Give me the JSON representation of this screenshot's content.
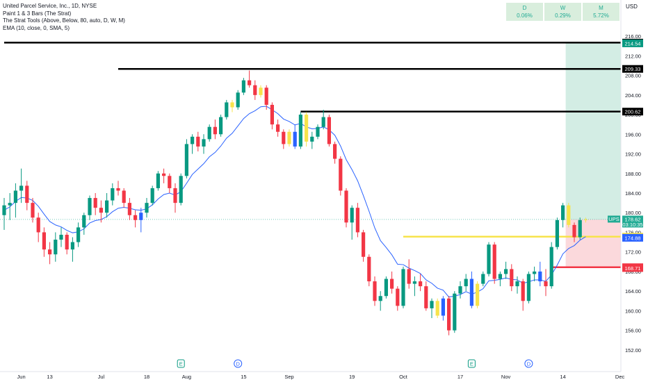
{
  "legend": {
    "symbol": "United Parcel Service, Inc., 1D, NYSE",
    "indicator1": "Paint 1 & 3 Bars (The Strat)",
    "indicator2": "The Strat Tools (Above, Below, 80, auto, D, W, M)",
    "indicator3": "EMA (10, close, 0, SMA, 5)"
  },
  "performance": [
    {
      "label": "D",
      "value": "0.06%"
    },
    {
      "label": "W",
      "value": "0.29%"
    },
    {
      "label": "M",
      "value": "5.72%"
    }
  ],
  "currency": "USD",
  "colors": {
    "up": "#089981",
    "down": "#f23645",
    "inside": "#f7e34b",
    "outside": "#2962ff",
    "ema": "#2962ff",
    "level": "#000000",
    "yellow_level": "#f7e34b",
    "red_level": "#f23645",
    "profit_zone": "#d3ede4",
    "loss_zone": "#fbd9dc"
  },
  "chart_data": {
    "type": "candlestick",
    "ylim": [
      150,
      218
    ],
    "y_ticks": [
      152,
      156,
      160,
      164,
      168,
      172,
      176,
      180,
      184,
      188,
      192,
      196,
      200,
      204,
      208,
      212,
      216
    ],
    "x_labels": [
      "Jun",
      "13",
      "Jul",
      "18",
      "Aug",
      "15",
      "Sep",
      "19",
      "Oct",
      "17",
      "Nov",
      "14",
      "Dec"
    ],
    "x_label_index": [
      3,
      8,
      17,
      25,
      32,
      42,
      50,
      61,
      70,
      80,
      88,
      98,
      108
    ],
    "levels": [
      {
        "price": 214.69,
        "label": "214.69",
        "start": 0,
        "color": "#000000"
      },
      {
        "price": 209.33,
        "label": "209.33",
        "start": 20,
        "color": "#000000"
      },
      {
        "price": 200.62,
        "label": "200.62",
        "start": 52,
        "color": "#000000"
      },
      {
        "price": 175.11,
        "label": "175.11",
        "start": 70,
        "color": "#f7e34b"
      },
      {
        "price": 168.88,
        "label": "168.88",
        "start": 96,
        "color": "#f23645"
      }
    ],
    "price_tags": [
      {
        "label": "214.54",
        "price": 214.54,
        "bg": "#089981",
        "fg": "#ffffff"
      },
      {
        "label": "178.45",
        "price": 178.45,
        "bg": "#2962ff",
        "fg": "#ffffff"
      },
      {
        "label": "174.88",
        "price": 174.88,
        "bg": "#2962ff",
        "fg": "#ffffff"
      },
      {
        "label": "168.71",
        "price": 168.71,
        "bg": "#f23645",
        "fg": "#ffffff"
      }
    ],
    "last_price": {
      "symbol": "UPS",
      "price": 178.62,
      "label": "178.62",
      "countdown": "03:10:35"
    },
    "position": {
      "entry": 178.62,
      "target": 214.69,
      "stop": 168.88,
      "start": 98
    },
    "event_markers": [
      {
        "index": 31,
        "letter": "E"
      },
      {
        "index": 41,
        "letter": "D"
      },
      {
        "index": 82,
        "letter": "E"
      },
      {
        "index": 92,
        "letter": "D"
      }
    ],
    "candles": [
      {
        "o": 179.5,
        "h": 183,
        "l": 176.5,
        "c": 181.5
      },
      {
        "o": 181.5,
        "h": 184,
        "l": 178.5,
        "c": 182
      },
      {
        "o": 182,
        "h": 186,
        "l": 179,
        "c": 184.5
      },
      {
        "o": 184.5,
        "h": 189,
        "l": 182,
        "c": 185.5
      },
      {
        "o": 185.5,
        "h": 186.5,
        "l": 180.5,
        "c": 182
      },
      {
        "o": 182,
        "h": 183,
        "l": 178,
        "c": 179
      },
      {
        "o": 179,
        "h": 180,
        "l": 174,
        "c": 176
      },
      {
        "o": 176,
        "h": 177,
        "l": 171,
        "c": 172.5
      },
      {
        "o": 172.5,
        "h": 174,
        "l": 169.5,
        "c": 171.5
      },
      {
        "o": 171.5,
        "h": 176,
        "l": 170,
        "c": 174.5
      },
      {
        "o": 174.5,
        "h": 177,
        "l": 173,
        "c": 175.5
      },
      {
        "o": 175.5,
        "h": 176,
        "l": 171.5,
        "c": 172.5
      },
      {
        "o": 172.5,
        "h": 175,
        "l": 170,
        "c": 174
      },
      {
        "o": 174,
        "h": 178,
        "l": 173,
        "c": 177
      },
      {
        "o": 177,
        "h": 180,
        "l": 175.5,
        "c": 179.5
      },
      {
        "o": 179.5,
        "h": 183.5,
        "l": 178.5,
        "c": 183
      },
      {
        "o": 183,
        "h": 184,
        "l": 179.5,
        "c": 181
      },
      {
        "o": 181,
        "h": 182.5,
        "l": 178,
        "c": 180
      },
      {
        "o": 180,
        "h": 184,
        "l": 179,
        "c": 182.5
      },
      {
        "o": 182.5,
        "h": 186,
        "l": 181.5,
        "c": 185
      },
      {
        "o": 185,
        "h": 186.5,
        "l": 183.5,
        "c": 184.5
      },
      {
        "o": 184.5,
        "h": 185,
        "l": 181,
        "c": 182
      },
      {
        "o": 182,
        "h": 183,
        "l": 178.5,
        "c": 179.5
      },
      {
        "o": 179.5,
        "h": 180.5,
        "l": 177,
        "c": 178.5
      },
      {
        "o": 178.5,
        "h": 181,
        "l": 176,
        "c": 180
      },
      {
        "o": 180,
        "h": 183,
        "l": 179,
        "c": 182
      },
      {
        "o": 182,
        "h": 185.5,
        "l": 181.5,
        "c": 185
      },
      {
        "o": 185,
        "h": 188.5,
        "l": 184.5,
        "c": 188
      },
      {
        "o": 188,
        "h": 189,
        "l": 186,
        "c": 187.5
      },
      {
        "o": 187.5,
        "h": 188,
        "l": 184,
        "c": 185
      },
      {
        "o": 185,
        "h": 186,
        "l": 180,
        "c": 182
      },
      {
        "o": 182,
        "h": 188,
        "l": 181.5,
        "c": 187.5
      },
      {
        "o": 187.5,
        "h": 195,
        "l": 187,
        "c": 194
      },
      {
        "o": 194,
        "h": 196,
        "l": 192,
        "c": 195.5
      },
      {
        "o": 195.5,
        "h": 196.5,
        "l": 192.5,
        "c": 193.5
      },
      {
        "o": 193.5,
        "h": 196,
        "l": 192,
        "c": 195
      },
      {
        "o": 195,
        "h": 198,
        "l": 194.5,
        "c": 197.5
      },
      {
        "o": 197.5,
        "h": 199,
        "l": 195,
        "c": 196
      },
      {
        "o": 196,
        "h": 200,
        "l": 195.5,
        "c": 199.5
      },
      {
        "o": 199.5,
        "h": 203,
        "l": 199,
        "c": 202.5
      },
      {
        "o": 202.5,
        "h": 203,
        "l": 200.5,
        "c": 201.5
      },
      {
        "o": 201.5,
        "h": 205,
        "l": 201,
        "c": 204.5
      },
      {
        "o": 204.5,
        "h": 207.5,
        "l": 204,
        "c": 207
      },
      {
        "o": 207,
        "h": 209,
        "l": 205.5,
        "c": 206
      },
      {
        "o": 206,
        "h": 207,
        "l": 203,
        "c": 204
      },
      {
        "o": 204,
        "h": 206,
        "l": 203.5,
        "c": 205.5
      },
      {
        "o": 205.5,
        "h": 206,
        "l": 201,
        "c": 202
      },
      {
        "o": 202,
        "h": 202.5,
        "l": 197,
        "c": 198
      },
      {
        "o": 198,
        "h": 199,
        "l": 195.5,
        "c": 196.5
      },
      {
        "o": 196.5,
        "h": 197,
        "l": 193,
        "c": 194
      },
      {
        "o": 194,
        "h": 197,
        "l": 193.5,
        "c": 196.5
      },
      {
        "o": 196.5,
        "h": 198,
        "l": 193,
        "c": 193.5
      },
      {
        "o": 193.5,
        "h": 200.5,
        "l": 193,
        "c": 200
      },
      {
        "o": 200,
        "h": 200.5,
        "l": 193.5,
        "c": 194.5
      },
      {
        "o": 194.5,
        "h": 196.5,
        "l": 193,
        "c": 195.5
      },
      {
        "o": 195.5,
        "h": 198,
        "l": 195,
        "c": 197.5
      },
      {
        "o": 197.5,
        "h": 201,
        "l": 197,
        "c": 199.5
      },
      {
        "o": 199.5,
        "h": 200,
        "l": 193.5,
        "c": 194
      },
      {
        "o": 194,
        "h": 194.5,
        "l": 190,
        "c": 191
      },
      {
        "o": 191,
        "h": 191.5,
        "l": 183.5,
        "c": 184.5
      },
      {
        "o": 184.5,
        "h": 185,
        "l": 177,
        "c": 178
      },
      {
        "o": 178,
        "h": 181.5,
        "l": 174.5,
        "c": 181
      },
      {
        "o": 181,
        "h": 182,
        "l": 175,
        "c": 176
      },
      {
        "o": 176,
        "h": 176.5,
        "l": 170,
        "c": 171
      },
      {
        "o": 171,
        "h": 171.5,
        "l": 165,
        "c": 166
      },
      {
        "o": 166,
        "h": 167,
        "l": 161,
        "c": 162
      },
      {
        "o": 162,
        "h": 164,
        "l": 160,
        "c": 163
      },
      {
        "o": 163,
        "h": 167,
        "l": 162.5,
        "c": 166.5
      },
      {
        "o": 166.5,
        "h": 168,
        "l": 163.5,
        "c": 164.5
      },
      {
        "o": 164.5,
        "h": 165,
        "l": 160,
        "c": 161
      },
      {
        "o": 161,
        "h": 169,
        "l": 160.5,
        "c": 168.5
      },
      {
        "o": 168.5,
        "h": 170.5,
        "l": 164.5,
        "c": 165.5
      },
      {
        "o": 165.5,
        "h": 167,
        "l": 163,
        "c": 166
      },
      {
        "o": 166,
        "h": 167.5,
        "l": 164,
        "c": 165
      },
      {
        "o": 165,
        "h": 166,
        "l": 160,
        "c": 160.5
      },
      {
        "o": 160.5,
        "h": 162.5,
        "l": 158.5,
        "c": 162
      },
      {
        "o": 162,
        "h": 162.5,
        "l": 158.5,
        "c": 159
      },
      {
        "o": 159,
        "h": 163,
        "l": 158,
        "c": 162.5
      },
      {
        "o": 162.5,
        "h": 163,
        "l": 155,
        "c": 156
      },
      {
        "o": 156,
        "h": 164,
        "l": 155.5,
        "c": 163.5
      },
      {
        "o": 163.5,
        "h": 166,
        "l": 162.5,
        "c": 165
      },
      {
        "o": 165,
        "h": 167.5,
        "l": 164,
        "c": 166.5
      },
      {
        "o": 166.5,
        "h": 168,
        "l": 160.5,
        "c": 161
      },
      {
        "o": 161,
        "h": 166,
        "l": 160.5,
        "c": 165.5
      },
      {
        "o": 165.5,
        "h": 168,
        "l": 165,
        "c": 167.5
      },
      {
        "o": 167.5,
        "h": 174,
        "l": 167,
        "c": 173.5
      },
      {
        "o": 173.5,
        "h": 174,
        "l": 165.5,
        "c": 166.5
      },
      {
        "o": 166.5,
        "h": 168,
        "l": 165,
        "c": 167.5
      },
      {
        "o": 167.5,
        "h": 170,
        "l": 166.5,
        "c": 168.5
      },
      {
        "o": 168.5,
        "h": 169.5,
        "l": 164,
        "c": 165
      },
      {
        "o": 165,
        "h": 167,
        "l": 163.5,
        "c": 166
      },
      {
        "o": 166,
        "h": 166.5,
        "l": 160,
        "c": 162
      },
      {
        "o": 162,
        "h": 168,
        "l": 161.5,
        "c": 167.5
      },
      {
        "o": 167.5,
        "h": 169,
        "l": 166,
        "c": 168
      },
      {
        "o": 168,
        "h": 170,
        "l": 165,
        "c": 166
      },
      {
        "o": 166,
        "h": 168.5,
        "l": 163,
        "c": 165
      },
      {
        "o": 165,
        "h": 174,
        "l": 164.5,
        "c": 173
      },
      {
        "o": 173,
        "h": 179,
        "l": 172.5,
        "c": 178.5
      },
      {
        "o": 178.5,
        "h": 182,
        "l": 177,
        "c": 181.5
      },
      {
        "o": 181.5,
        "h": 182,
        "l": 177,
        "c": 177.5
      },
      {
        "o": 177.5,
        "h": 178,
        "l": 174,
        "c": 175
      },
      {
        "o": 175,
        "h": 179,
        "l": 174.5,
        "c": 178.5
      },
      {
        "o": 178.5,
        "h": 179,
        "l": 178,
        "c": 178.62
      }
    ],
    "ema": [
      180.5,
      181.2,
      182.3,
      183.1,
      183,
      182.5,
      181.3,
      179.7,
      178.2,
      177.5,
      177.1,
      176.4,
      175.9,
      176.1,
      176.7,
      177.9,
      178.4,
      178.6,
      179.2,
      180.2,
      180.9,
      181.1,
      180.9,
      180.6,
      180.5,
      180.8,
      181.6,
      182.8,
      183.7,
      184,
      183.6,
      184.3,
      186,
      187.8,
      188.9,
      190,
      191.4,
      192.3,
      193.6,
      195.2,
      196.2,
      197.7,
      199.2,
      200.2,
      200.8,
      201.6,
      201.7,
      201,
      200.2,
      199.1,
      198.6,
      197.9,
      198.2,
      197.5,
      197.1,
      197.2,
      197.5,
      196.9,
      195.8,
      193.6,
      190.8,
      188.8,
      186.5,
      183.5,
      180.3,
      176.9,
      174.3,
      172.9,
      171.4,
      169.5,
      169.4,
      168.7,
      168.2,
      167.6,
      166.3,
      165.6,
      164.6,
      164.2,
      162.8,
      163,
      163.3,
      163.9,
      163.4,
      163.8,
      164.5,
      166.1,
      166.2,
      166.4,
      166.7,
      166.4,
      166.3,
      165.6,
      165.9,
      166.3,
      166.3,
      166,
      167.3,
      169.3,
      171.6,
      172.7,
      173.3,
      174.4,
      175.1
    ]
  }
}
